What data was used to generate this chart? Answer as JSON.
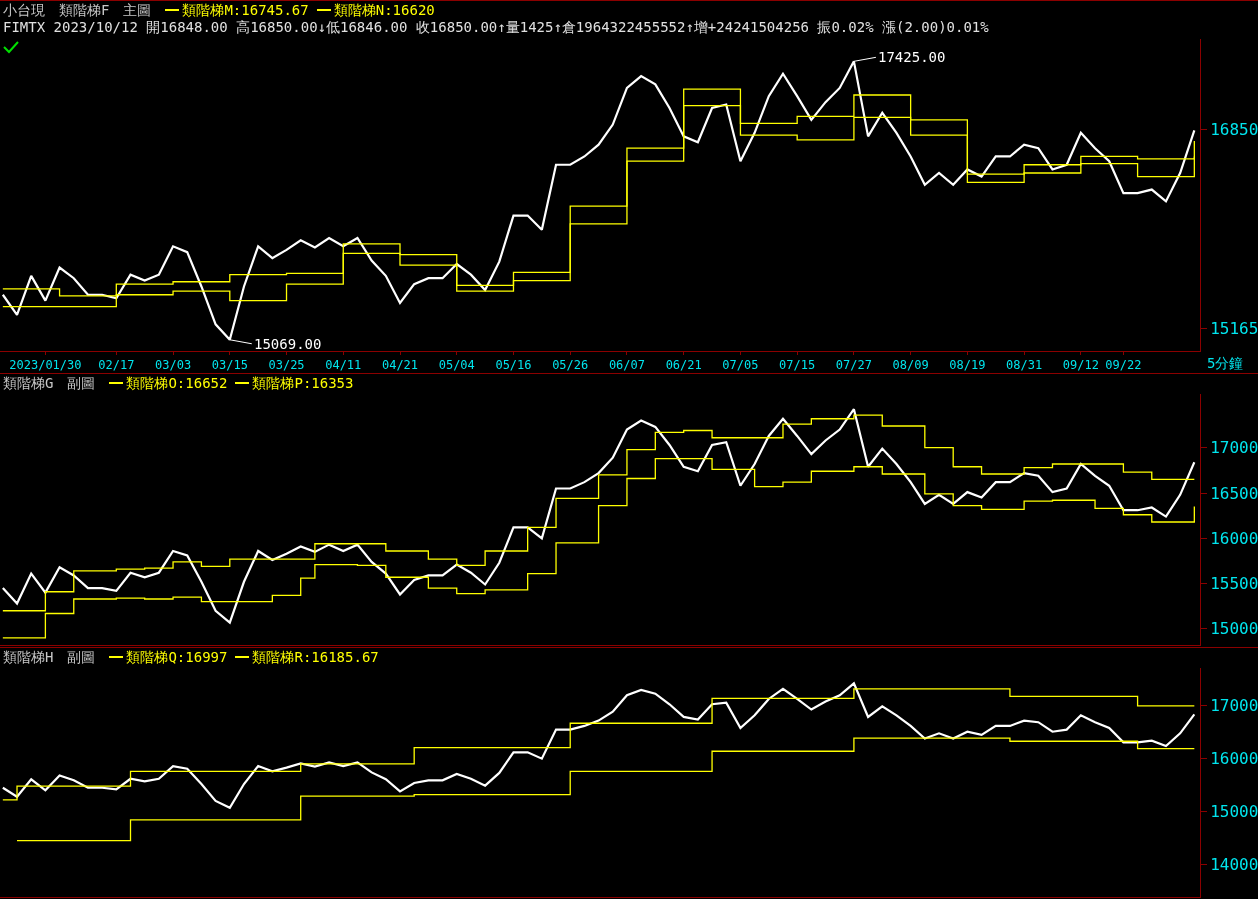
{
  "chart_data": [
    {
      "type": "line",
      "title": "小台現",
      "subtitle": "FIMTX 2023/10/12 開16848.00 高16850.00↓低16846.00 收16850.00↑量1425↑倉1964322455552↑增+24241504256 振0.02% 漲(2.00)0.01%",
      "annotations": [
        "類階梯F",
        "主圖",
        {
          "text": "17425.00",
          "x": "07/27",
          "y": 17425
        },
        {
          "text": "15069.00",
          "x": "03/15",
          "y": 15069
        }
      ],
      "xlabel": "5分鐘",
      "legend": "top left",
      "categories": [
        null,
        null,
        null,
        "2023/01/30",
        null,
        null,
        null,
        null,
        "02/17",
        null,
        null,
        null,
        "03/03",
        null,
        null,
        null,
        "03/15",
        null,
        null,
        null,
        "03/25",
        null,
        null,
        null,
        "04/11",
        null,
        null,
        null,
        "04/21",
        null,
        null,
        null,
        "05/04",
        null,
        null,
        null,
        "05/16",
        null,
        null,
        null,
        "05/26",
        null,
        null,
        null,
        "06/07",
        null,
        null,
        null,
        "06/21",
        null,
        null,
        null,
        "07/05",
        null,
        null,
        null,
        "07/15",
        null,
        null,
        null,
        "07/27",
        null,
        null,
        null,
        "08/09",
        null,
        null,
        null,
        "08/19",
        null,
        null,
        null,
        "08/31",
        null,
        null,
        null,
        "09/12",
        null,
        null,
        "09/22",
        null,
        null,
        null,
        null,
        null
      ],
      "ylim": [
        14974,
        17614
      ],
      "yticks": [
        15165,
        16850
      ],
      "series": [
        {
          "color": "#ffffff",
          "values": [
            15450,
            15280,
            15610,
            15400,
            15680,
            15590,
            15450,
            15450,
            15420,
            15620,
            15570,
            15620,
            15860,
            15810,
            15520,
            15200,
            15069,
            15520,
            15860,
            15760,
            15830,
            15910,
            15850,
            15930,
            15860,
            15930,
            15740,
            15610,
            15380,
            15540,
            15590,
            15590,
            15710,
            15620,
            15490,
            15730,
            16120,
            16120,
            16000,
            16550,
            16550,
            16620,
            16720,
            16890,
            17200,
            17300,
            17230,
            17030,
            16790,
            16740,
            17030,
            17060,
            16580,
            16820,
            17130,
            17320,
            17130,
            16930,
            17080,
            17200,
            17425,
            16790,
            16990,
            16820,
            16620,
            16380,
            16480,
            16380,
            16510,
            16450,
            16620,
            16620,
            16720,
            16690,
            16510,
            16550,
            16820,
            16690,
            16580,
            16310,
            16310,
            16340,
            16240,
            16480,
            16840
          ]
        },
        {
          "name": "類階梯M:16745.67",
          "type": "step",
          "color": "#ffff00",
          "values": [
            15500,
            15500,
            15500,
            15500,
            15440,
            15440,
            15440,
            15440,
            15540,
            15540,
            15540,
            15540,
            15560,
            15560,
            15560,
            15560,
            15620,
            15620,
            15620,
            15620,
            15630,
            15630,
            15630,
            15630,
            15880,
            15880,
            15880,
            15880,
            15790,
            15790,
            15790,
            15790,
            15530,
            15530,
            15530,
            15530,
            15640,
            15640,
            15640,
            15640,
            16200,
            16200,
            16200,
            16200,
            16690,
            16690,
            16690,
            16690,
            17190,
            17190,
            17190,
            17190,
            16900,
            16900,
            16900,
            16900,
            16960,
            16960,
            16960,
            16960,
            17140,
            17140,
            17140,
            17140,
            16930,
            16930,
            16930,
            16930,
            16470,
            16470,
            16470,
            16470,
            16550,
            16550,
            16550,
            16550,
            16620,
            16620,
            16620,
            16620,
            16600,
            16600,
            16600,
            16600,
            16750
          ]
        },
        {
          "name": "類階梯N:16620",
          "type": "step",
          "color": "#ffff00",
          "values": [
            15350,
            15350,
            15350,
            15350,
            15350,
            15350,
            15350,
            15350,
            15450,
            15450,
            15450,
            15450,
            15480,
            15480,
            15480,
            15480,
            15400,
            15400,
            15400,
            15400,
            15540,
            15540,
            15540,
            15540,
            15800,
            15800,
            15800,
            15800,
            15700,
            15700,
            15700,
            15700,
            15480,
            15480,
            15480,
            15480,
            15570,
            15570,
            15570,
            15570,
            16050,
            16050,
            16050,
            16050,
            16580,
            16580,
            16580,
            16580,
            17050,
            17050,
            17050,
            17050,
            16800,
            16800,
            16800,
            16800,
            16760,
            16760,
            16760,
            16760,
            16950,
            16950,
            16950,
            16950,
            16800,
            16800,
            16800,
            16800,
            16400,
            16400,
            16400,
            16400,
            16480,
            16480,
            16480,
            16480,
            16560,
            16560,
            16560,
            16560,
            16450,
            16450,
            16450,
            16450,
            16620
          ]
        }
      ]
    },
    {
      "type": "line",
      "title": "類階梯G",
      "annotations": [
        "副圖"
      ],
      "legend": "top left",
      "tick_labels": "y",
      "categories": [
        null,
        null,
        null,
        null,
        null,
        null,
        null,
        null,
        null,
        null,
        null,
        null,
        null,
        null,
        null,
        null,
        null,
        null,
        null,
        null,
        null,
        null,
        null,
        null,
        null,
        null,
        null,
        null,
        null,
        null,
        null,
        null,
        null,
        null,
        null,
        null,
        null,
        null,
        null,
        null,
        null,
        null,
        null,
        null,
        null,
        null,
        null,
        null,
        null,
        null,
        null,
        null,
        null,
        null,
        null,
        null,
        null,
        null,
        null,
        null,
        null,
        null,
        null,
        null,
        null,
        null,
        null,
        null,
        null,
        null,
        null,
        null,
        null,
        null,
        null,
        null,
        null,
        null,
        null,
        null,
        null,
        null,
        null,
        null,
        null
      ],
      "ylim": [
        14822,
        17593
      ],
      "yticks": [
        15000,
        15500,
        16000,
        16500,
        17000
      ],
      "series": [
        {
          "color": "#ffffff",
          "values": [
            15450,
            15280,
            15610,
            15400,
            15680,
            15590,
            15450,
            15450,
            15420,
            15620,
            15570,
            15620,
            15860,
            15810,
            15520,
            15200,
            15069,
            15520,
            15860,
            15760,
            15830,
            15910,
            15850,
            15930,
            15860,
            15930,
            15740,
            15610,
            15380,
            15540,
            15590,
            15590,
            15710,
            15620,
            15490,
            15730,
            16120,
            16120,
            16000,
            16550,
            16550,
            16620,
            16720,
            16890,
            17200,
            17300,
            17230,
            17030,
            16790,
            16740,
            17030,
            17060,
            16580,
            16820,
            17130,
            17320,
            17130,
            16930,
            17080,
            17200,
            17425,
            16790,
            16990,
            16820,
            16620,
            16380,
            16480,
            16380,
            16510,
            16450,
            16620,
            16620,
            16720,
            16690,
            16510,
            16550,
            16820,
            16690,
            16580,
            16310,
            16310,
            16340,
            16240,
            16480,
            16840
          ]
        },
        {
          "name": "類階梯O:16652",
          "type": "step",
          "color": "#ffff00",
          "values": [
            15200,
            15200,
            15200,
            15410,
            15410,
            15640,
            15640,
            15640,
            15660,
            15660,
            15670,
            15670,
            15740,
            15740,
            15690,
            15690,
            15770,
            15770,
            15770,
            15770,
            15770,
            15770,
            15940,
            15940,
            15940,
            15940,
            15940,
            15860,
            15860,
            15860,
            15770,
            15770,
            15700,
            15700,
            15860,
            15860,
            15860,
            16120,
            16120,
            16440,
            16440,
            16440,
            16700,
            16700,
            16980,
            16980,
            17170,
            17170,
            17190,
            17190,
            17110,
            17110,
            17110,
            17110,
            17110,
            17260,
            17260,
            17320,
            17320,
            17320,
            17360,
            17360,
            17240,
            17240,
            17240,
            17000,
            17000,
            16790,
            16790,
            16710,
            16710,
            16710,
            16780,
            16780,
            16820,
            16820,
            16820,
            16820,
            16820,
            16730,
            16730,
            16650,
            16650,
            16650,
            16650
          ]
        },
        {
          "name": "類階梯P:16353",
          "type": "step",
          "color": "#ffff00",
          "values": [
            14900,
            14900,
            14900,
            15170,
            15170,
            15330,
            15330,
            15330,
            15340,
            15340,
            15330,
            15330,
            15350,
            15350,
            15300,
            15300,
            15300,
            15300,
            15300,
            15370,
            15370,
            15560,
            15710,
            15710,
            15710,
            15700,
            15700,
            15570,
            15570,
            15570,
            15450,
            15450,
            15390,
            15390,
            15430,
            15430,
            15430,
            15610,
            15610,
            15950,
            15950,
            15950,
            16360,
            16360,
            16660,
            16660,
            16880,
            16880,
            16880,
            16880,
            16760,
            16760,
            16760,
            16570,
            16570,
            16620,
            16620,
            16740,
            16740,
            16740,
            16790,
            16790,
            16710,
            16710,
            16710,
            16490,
            16490,
            16360,
            16360,
            16320,
            16320,
            16320,
            16410,
            16410,
            16420,
            16420,
            16420,
            16330,
            16330,
            16260,
            16260,
            16180,
            16180,
            16180,
            16350
          ]
        }
      ]
    },
    {
      "type": "line",
      "title": "類階梯H",
      "annotations": [
        "副圖"
      ],
      "legend": "top left",
      "tick_labels": "y",
      "categories": [
        null,
        null,
        null,
        null,
        null,
        null,
        null,
        null,
        null,
        null,
        null,
        null,
        null,
        null,
        null,
        null,
        null,
        null,
        null,
        null,
        null,
        null,
        null,
        null,
        null,
        null,
        null,
        null,
        null,
        null,
        null,
        null,
        null,
        null,
        null,
        null,
        null,
        null,
        null,
        null,
        null,
        null,
        null,
        null,
        null,
        null,
        null,
        null,
        null,
        null,
        null,
        null,
        null,
        null,
        null,
        null,
        null,
        null,
        null,
        null,
        null,
        null,
        null,
        null,
        null,
        null,
        null,
        null,
        null,
        null,
        null,
        null,
        null,
        null,
        null,
        null,
        null,
        null,
        null,
        null,
        null,
        null,
        null,
        null,
        null
      ],
      "ylim": [
        13382,
        17716
      ],
      "yticks": [
        14000,
        15000,
        16000,
        17000
      ],
      "series": [
        {
          "color": "#ffffff",
          "values": [
            15450,
            15280,
            15610,
            15400,
            15680,
            15590,
            15450,
            15450,
            15420,
            15620,
            15570,
            15620,
            15860,
            15810,
            15520,
            15200,
            15069,
            15520,
            15860,
            15760,
            15830,
            15910,
            15850,
            15930,
            15860,
            15930,
            15740,
            15610,
            15380,
            15540,
            15590,
            15590,
            15710,
            15620,
            15490,
            15730,
            16120,
            16120,
            16000,
            16550,
            16550,
            16620,
            16720,
            16890,
            17200,
            17300,
            17230,
            17030,
            16790,
            16740,
            17030,
            17060,
            16580,
            16820,
            17130,
            17320,
            17130,
            16930,
            17080,
            17200,
            17425,
            16790,
            16990,
            16820,
            16620,
            16380,
            16480,
            16380,
            16510,
            16450,
            16620,
            16620,
            16720,
            16690,
            16510,
            16550,
            16820,
            16690,
            16580,
            16310,
            16310,
            16340,
            16240,
            16480,
            16840
          ]
        },
        {
          "name": "類階梯Q:16997",
          "type": "step",
          "color": "#ffff00",
          "values": [
            15220,
            15480,
            15480,
            15480,
            15480,
            15480,
            15480,
            15480,
            15480,
            15760,
            15760,
            15760,
            15760,
            15760,
            15760,
            15760,
            15760,
            15760,
            15760,
            15760,
            15760,
            15900,
            15900,
            15900,
            15900,
            15900,
            15900,
            15900,
            15900,
            16210,
            16210,
            16210,
            16210,
            16210,
            16210,
            16210,
            16210,
            16210,
            16210,
            16210,
            16670,
            16670,
            16670,
            16670,
            16670,
            16670,
            16670,
            16670,
            16670,
            16670,
            17140,
            17140,
            17140,
            17140,
            17140,
            17140,
            17140,
            17140,
            17140,
            17140,
            17320,
            17320,
            17320,
            17320,
            17320,
            17320,
            17320,
            17320,
            17320,
            17320,
            17320,
            17180,
            17180,
            17180,
            17180,
            17180,
            17180,
            17180,
            17180,
            17180,
            17000,
            17000,
            17000,
            17000,
            17000
          ]
        },
        {
          "name": "類階梯R:16185.67",
          "type": "step",
          "color": "#ffff00",
          "values": [
            null,
            14450,
            14450,
            14450,
            14450,
            14450,
            14450,
            14450,
            14450,
            14840,
            14840,
            14840,
            14840,
            14840,
            14840,
            14840,
            14840,
            14840,
            14840,
            14840,
            14840,
            15290,
            15290,
            15290,
            15290,
            15290,
            15290,
            15290,
            15290,
            15320,
            15320,
            15320,
            15320,
            15320,
            15320,
            15320,
            15320,
            15320,
            15320,
            15320,
            15760,
            15760,
            15760,
            15760,
            15760,
            15760,
            15760,
            15760,
            15760,
            15760,
            16140,
            16140,
            16140,
            16140,
            16140,
            16140,
            16140,
            16140,
            16140,
            16140,
            16390,
            16390,
            16390,
            16390,
            16390,
            16390,
            16390,
            16390,
            16390,
            16390,
            16390,
            16330,
            16330,
            16330,
            16330,
            16330,
            16330,
            16330,
            16330,
            16330,
            16190,
            16190,
            16190,
            16190,
            16190
          ]
        }
      ]
    }
  ]
}
